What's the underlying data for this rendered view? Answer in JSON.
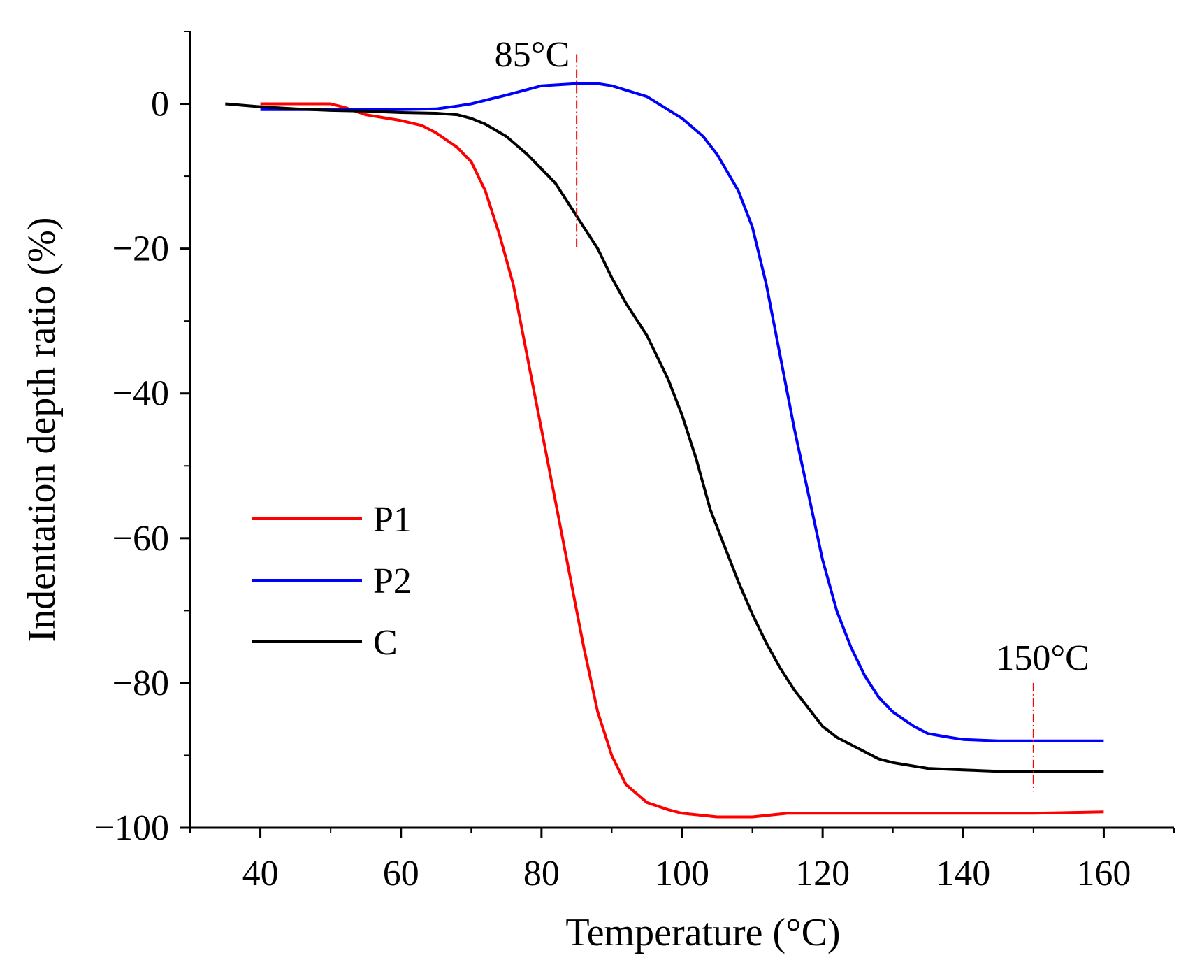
{
  "chart_data": {
    "type": "line",
    "title": "",
    "xlabel": "Temperature (°C)",
    "ylabel": "Indentation depth ratio (%)",
    "xlim": [
      30,
      170
    ],
    "ylim": [
      -100,
      10
    ],
    "xticks": [
      40,
      60,
      80,
      100,
      120,
      140,
      160
    ],
    "yticks": [
      0,
      -20,
      -40,
      -60,
      -80,
      -100
    ],
    "xtick_labels": [
      "40",
      "60",
      "80",
      "100",
      "120",
      "140",
      "160"
    ],
    "ytick_labels": [
      "0",
      "−20",
      "−40",
      "−60",
      "−80",
      "−100"
    ],
    "grid": false,
    "legend_position": "center-left",
    "series": [
      {
        "name": "P1",
        "color": "#ff0000",
        "x": [
          40,
          45,
          50,
          52,
          55,
          60,
          63,
          65,
          68,
          70,
          72,
          74,
          76,
          78,
          80,
          82,
          84,
          86,
          88,
          90,
          92,
          95,
          98,
          100,
          105,
          110,
          115,
          120,
          130,
          140,
          150,
          160
        ],
        "y": [
          0,
          0,
          0,
          -0.5,
          -1.5,
          -2.3,
          -3,
          -4,
          -6,
          -8,
          -12,
          -18,
          -25,
          -35,
          -45,
          -55,
          -65,
          -75,
          -84,
          -90,
          -94,
          -96.5,
          -97.5,
          -98,
          -98.5,
          -98.5,
          -98,
          -98,
          -98,
          -98,
          -98,
          -97.8
        ]
      },
      {
        "name": "P2",
        "color": "#0000ff",
        "x": [
          40,
          50,
          60,
          65,
          68,
          70,
          75,
          80,
          85,
          88,
          90,
          95,
          100,
          103,
          105,
          108,
          110,
          112,
          114,
          116,
          118,
          120,
          122,
          124,
          126,
          128,
          130,
          133,
          135,
          138,
          140,
          145,
          150,
          160
        ],
        "y": [
          -0.8,
          -0.8,
          -0.8,
          -0.7,
          -0.3,
          0,
          1.2,
          2.5,
          2.8,
          2.8,
          2.5,
          1,
          -2,
          -4.5,
          -7,
          -12,
          -17,
          -25,
          -35,
          -45,
          -54,
          -63,
          -70,
          -75,
          -79,
          -82,
          -84,
          -86,
          -87,
          -87.5,
          -87.8,
          -88,
          -88,
          -88
        ]
      },
      {
        "name": "C",
        "color": "#000000",
        "x": [
          35,
          40,
          45,
          50,
          55,
          60,
          65,
          68,
          70,
          72,
          75,
          78,
          80,
          82,
          84,
          86,
          88,
          90,
          92,
          95,
          98,
          100,
          102,
          104,
          106,
          108,
          110,
          112,
          114,
          116,
          118,
          120,
          122,
          125,
          128,
          130,
          135,
          140,
          145,
          150,
          160
        ],
        "y": [
          0,
          -0.4,
          -0.7,
          -0.9,
          -1,
          -1.2,
          -1.3,
          -1.5,
          -2,
          -2.8,
          -4.5,
          -7,
          -9,
          -11,
          -14,
          -17,
          -20,
          -24,
          -27.5,
          -32,
          -38,
          -43,
          -49,
          -56,
          -61,
          -66,
          -70.5,
          -74.5,
          -78,
          -81,
          -83.5,
          -86,
          -87.5,
          -89,
          -90.5,
          -91,
          -91.8,
          -92,
          -92.2,
          -92.2,
          -92.2
        ]
      }
    ],
    "annotations": [
      {
        "text": "85°C",
        "x_line": 85,
        "y_line_range": [
          3,
          -20
        ]
      },
      {
        "text": "150°C",
        "x_line": 150,
        "y_line_range": [
          -80,
          -95
        ]
      }
    ]
  }
}
